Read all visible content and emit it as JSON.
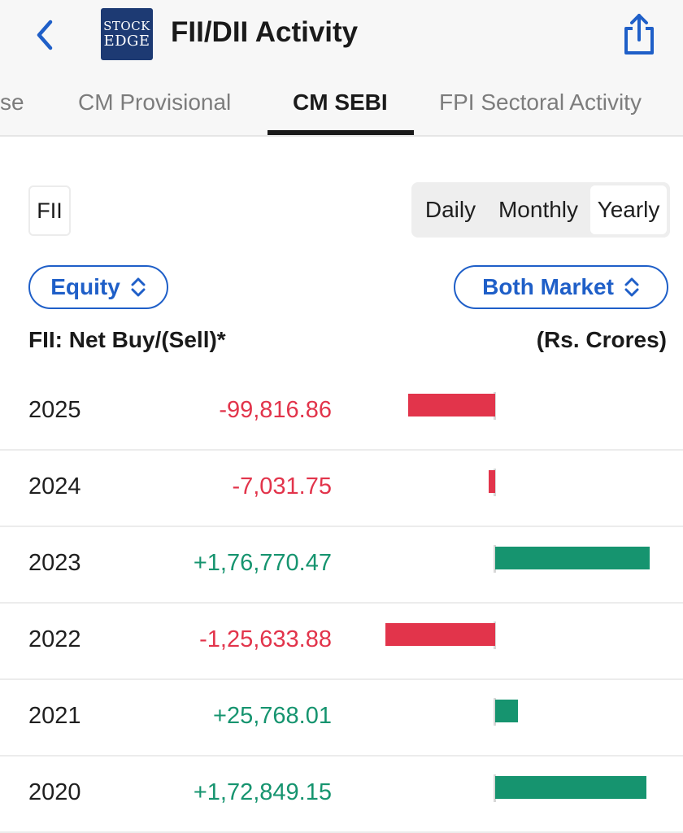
{
  "header": {
    "title": "FII/DII Activity",
    "logo_line1": "STOCK",
    "logo_line2": "EDGE",
    "back_icon": "chevron-left-icon",
    "share_icon": "share-icon"
  },
  "tabs": [
    {
      "label": "se",
      "active": false
    },
    {
      "label": "CM Provisional",
      "active": false
    },
    {
      "label": "CM SEBI",
      "active": true
    },
    {
      "label": "FPI Sectoral Activity",
      "active": false
    }
  ],
  "filters": {
    "investor": "FII",
    "period_options": [
      "Daily",
      "Monthly",
      "Yearly"
    ],
    "period_selected": "Yearly",
    "segment": "Equity",
    "market": "Both Market"
  },
  "table": {
    "caption_left": "FII: Net Buy/(Sell)*",
    "caption_right": "(Rs. Crores)",
    "rows": [
      {
        "year": "2025",
        "value_text": "-99,816.86",
        "value": -99816.86
      },
      {
        "year": "2024",
        "value_text": "-7,031.75",
        "value": -7031.75
      },
      {
        "year": "2023",
        "value_text": "+1,76,770.47",
        "value": 176770.47
      },
      {
        "year": "2022",
        "value_text": "-1,25,633.88",
        "value": -125633.88
      },
      {
        "year": "2021",
        "value_text": "+25,768.01",
        "value": 25768.01
      },
      {
        "year": "2020",
        "value_text": "+1,72,849.15",
        "value": 172849.15
      }
    ]
  },
  "colors": {
    "accent": "#1f5fc8",
    "negative": "#e2344b",
    "positive": "#16946f",
    "logo_bg": "#1d3a73"
  }
}
